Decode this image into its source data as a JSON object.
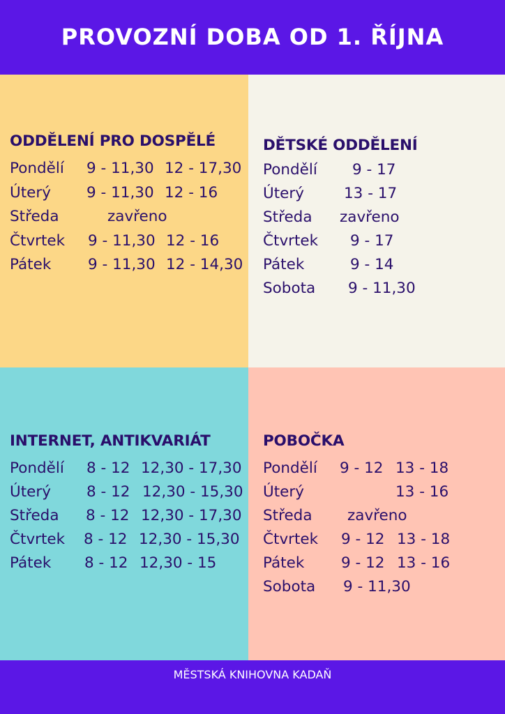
{
  "title": "PROVOZNÍ DOBA OD 1. ŘÍJNA",
  "adults": {
    "heading": "ODDĚLENÍ PRO DOSPĚLÉ",
    "rows": [
      {
        "day": "Pondělí",
        "a": "9 - 11,30",
        "b": "12 - 17,30"
      },
      {
        "day": "Úterý",
        "a": "9 - 11,30",
        "b": "12 - 16"
      },
      {
        "day": "Středa",
        "a": "zavřeno",
        "b": ""
      },
      {
        "day": "Čtvrtek",
        "a": "9 - 11,30",
        "b": "12 - 16"
      },
      {
        "day": "Pátek",
        "a": "9 - 11,30",
        "b": "12 - 14,30"
      }
    ]
  },
  "children": {
    "heading": "DĚTSKÉ ODDĚLENÍ",
    "rows": [
      {
        "day": "Pondělí",
        "a": "9 - 17"
      },
      {
        "day": "Úterý",
        "a": "13 - 17"
      },
      {
        "day": "Středa",
        "a": "zavřeno"
      },
      {
        "day": "Čtvrtek",
        "a": "9 - 17"
      },
      {
        "day": "Pátek",
        "a": "9 - 14"
      },
      {
        "day": "Sobota",
        "a": "9 - 11,30"
      }
    ]
  },
  "internet": {
    "heading": "INTERNET, ANTIKVARIÁT",
    "rows": [
      {
        "day": "Pondělí",
        "a": "8 - 12",
        "b": "12,30 - 17,30"
      },
      {
        "day": "Úterý",
        "a": "8 - 12",
        "b": "12,30 - 15,30"
      },
      {
        "day": "Středa",
        "a": "8 - 12",
        "b": "12,30 - 17,30"
      },
      {
        "day": "Čtvrtek",
        "a": "8 - 12",
        "b": "12,30 - 15,30"
      },
      {
        "day": "Pátek",
        "a": "8 - 12",
        "b": "12,30 - 15"
      }
    ]
  },
  "branch": {
    "heading": "POBOČKA",
    "rows": [
      {
        "day": "Pondělí",
        "a": "9 - 12",
        "b": "13 - 18"
      },
      {
        "day": "Úterý",
        "a": "",
        "b": "13 - 16"
      },
      {
        "day": "Středa",
        "a": "zavřeno",
        "b": ""
      },
      {
        "day": "Čtvrtek",
        "a": "9 - 12",
        "b": "13 - 18"
      },
      {
        "day": "Pátek",
        "a": "9 - 12",
        "b": "13 - 16"
      },
      {
        "day": "Sobota",
        "a": "9 - 11,30",
        "b": ""
      }
    ]
  },
  "footer": "MĚSTSKÁ KNIHOVNA KADAŇ",
  "colors": {
    "header_bg": "#5b17e6",
    "adults_bg": "#fcd787",
    "children_bg": "#f5f3ea",
    "internet_bg": "#80d8dc",
    "branch_bg": "#ffc4b4",
    "text": "#2a0f6b"
  }
}
